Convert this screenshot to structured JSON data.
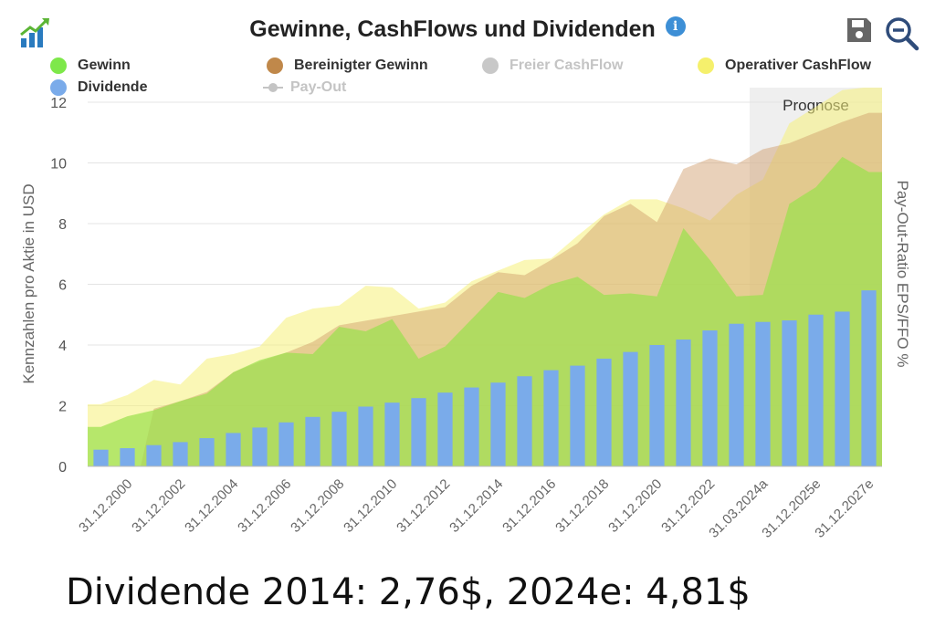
{
  "header": {
    "title": "Gewinne, CashFlows und Dividenden",
    "info_icon": "info-icon",
    "logo_icon": "trend-chart-icon",
    "save_icon": "save-icon",
    "zoom_icon": "zoom-out-icon"
  },
  "legend": [
    {
      "label": "Gewinn",
      "color": "#7ee84a",
      "active": true
    },
    {
      "label": "Bereinigter Gewinn",
      "color": "#c0884a",
      "active": true
    },
    {
      "label": "Freier CashFlow",
      "color": "#c8c8c8",
      "active": false
    },
    {
      "label": "Operativer CashFlow",
      "color": "#f5f06c",
      "active": true
    },
    {
      "label": "Dividende",
      "color": "#7aabea",
      "active": true
    },
    {
      "label": "Pay-Out",
      "color": "#c4c4c4",
      "active": false
    }
  ],
  "caption": "Dividende 2014: 2,76$, 2024e: 4,81$",
  "chart_data": {
    "type": "bar",
    "ylabel": "Kennzahlen pro Aktie in USD",
    "y2label": "Pay-Out-Ratio EPS/FFO %",
    "ylim": [
      0,
      12
    ],
    "yticks": [
      "0",
      "2",
      "4",
      "6",
      "8",
      "10",
      "12"
    ],
    "forecast_label": "Prognose",
    "forecast_start_index": 25,
    "x_tick_labels": [
      {
        "index": 1,
        "label": "31.12.2000"
      },
      {
        "index": 3,
        "label": "31.12.2002"
      },
      {
        "index": 5,
        "label": "31.12.2004"
      },
      {
        "index": 7,
        "label": "31.12.2006"
      },
      {
        "index": 9,
        "label": "31.12.2008"
      },
      {
        "index": 11,
        "label": "31.12.2010"
      },
      {
        "index": 13,
        "label": "31.12.2012"
      },
      {
        "index": 15,
        "label": "31.12.2014"
      },
      {
        "index": 17,
        "label": "31.12.2016"
      },
      {
        "index": 19,
        "label": "31.12.2018"
      },
      {
        "index": 21,
        "label": "31.12.2020"
      },
      {
        "index": 23,
        "label": "31.12.2022"
      },
      {
        "index": 25,
        "label": "31.03.2024a"
      },
      {
        "index": 27,
        "label": "31.12.2025e"
      },
      {
        "index": 29,
        "label": "31.12.2027e"
      }
    ],
    "series": [
      {
        "name": "Dividende",
        "type": "bar",
        "color": "#7aabea",
        "values": [
          0.55,
          0.6,
          0.7,
          0.8,
          0.93,
          1.1,
          1.28,
          1.45,
          1.63,
          1.8,
          1.97,
          2.1,
          2.25,
          2.43,
          2.6,
          2.76,
          2.97,
          3.17,
          3.32,
          3.55,
          3.77,
          4.0,
          4.18,
          4.48,
          4.7,
          4.76,
          4.81,
          5.0,
          5.1,
          5.8
        ]
      },
      {
        "name": "Operativer CashFlow",
        "type": "area",
        "color": "#f5f06c",
        "values": [
          2.05,
          2.35,
          2.85,
          2.7,
          3.55,
          3.7,
          3.95,
          4.9,
          5.2,
          5.3,
          5.95,
          5.9,
          5.2,
          5.4,
          6.1,
          6.45,
          6.8,
          6.85,
          7.6,
          8.3,
          8.8,
          8.8,
          8.5,
          8.1,
          8.95,
          9.45,
          11.3,
          11.85,
          12.4,
          12.5
        ]
      },
      {
        "name": "Bereinigter Gewinn",
        "type": "area",
        "color": "#c0884a",
        "values": [
          null,
          null,
          1.9,
          2.15,
          2.45,
          3.1,
          3.45,
          3.75,
          4.1,
          4.65,
          4.8,
          4.95,
          5.1,
          5.25,
          5.95,
          6.4,
          6.3,
          6.8,
          7.35,
          8.25,
          8.65,
          8.05,
          9.8,
          10.15,
          9.95,
          10.45,
          10.65,
          11.0,
          11.35,
          11.65
        ]
      },
      {
        "name": "Gewinn",
        "type": "area",
        "color": "#7ee84a",
        "values": [
          1.3,
          1.65,
          1.85,
          2.15,
          2.4,
          3.1,
          3.5,
          3.75,
          3.7,
          4.6,
          4.45,
          4.85,
          3.55,
          3.95,
          4.85,
          5.75,
          5.55,
          6.0,
          6.25,
          5.65,
          5.7,
          5.6,
          7.85,
          6.8,
          5.6,
          5.65,
          8.65,
          9.2,
          10.2,
          9.7
        ]
      }
    ]
  }
}
